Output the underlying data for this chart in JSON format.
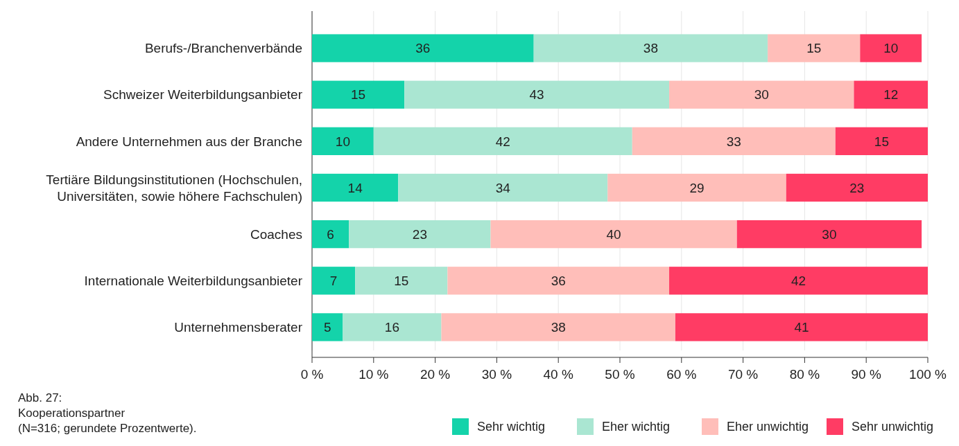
{
  "chart_data": {
    "type": "bar",
    "orientation": "horizontal",
    "stacked": true,
    "data_labels": true,
    "grid": "x",
    "legend": "bottom",
    "categories": [
      "Berufs-/Branchenverbände",
      "Schweizer Weiterbildungsanbieter",
      "Andere Unternehmen aus der Branche",
      "Tertiäre Bildungsinstitutionen (Hochschulen, Universitäten, sowie höhere Fachschulen)",
      "Coaches",
      "Internationale Weiterbildungsanbieter",
      "Unternehmensberater"
    ],
    "series": [
      {
        "name": "Sehr wichtig",
        "color": "#14d3aa",
        "values": [
          36,
          15,
          10,
          14,
          6,
          7,
          5
        ]
      },
      {
        "name": "Eher wichtig",
        "color": "#aae6d2",
        "values": [
          38,
          43,
          42,
          34,
          23,
          15,
          16
        ]
      },
      {
        "name": "Eher unwichtig",
        "color": "#ffbeb9",
        "values": [
          15,
          30,
          33,
          29,
          40,
          36,
          38
        ]
      },
      {
        "name": "Sehr unwichtig",
        "color": "#ff3c64",
        "values": [
          10,
          12,
          15,
          23,
          30,
          42,
          41
        ]
      }
    ],
    "xlim": [
      0,
      100
    ],
    "xticks": [
      {
        "value": 0,
        "label": "0 %"
      },
      {
        "value": 10,
        "label": "10 %"
      },
      {
        "value": 20,
        "label": "20 %"
      },
      {
        "value": 30,
        "label": "30 %"
      },
      {
        "value": 40,
        "label": "40 %"
      },
      {
        "value": 50,
        "label": "50 %"
      },
      {
        "value": 60,
        "label": "60 %"
      },
      {
        "value": 70,
        "label": "70 %"
      },
      {
        "value": 80,
        "label": "80 %"
      },
      {
        "value": 90,
        "label": "90 %"
      },
      {
        "value": 100,
        "label": "100 %"
      }
    ],
    "annotations": [
      "Abb. 27:",
      "Kooperationspartner",
      "(N=316; gerundete Prozentwerte)."
    ]
  }
}
